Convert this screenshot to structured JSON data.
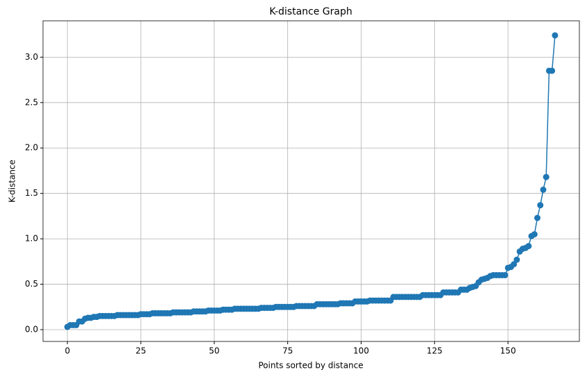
{
  "chart_data": {
    "type": "line",
    "title": "K-distance Graph",
    "x_label": "Points sorted by distance",
    "y_label": "K-distance",
    "x": [
      0,
      1,
      2,
      3,
      4,
      5,
      6,
      7,
      8,
      9,
      10,
      11,
      12,
      13,
      14,
      15,
      16,
      17,
      18,
      19,
      20,
      21,
      22,
      23,
      24,
      25,
      26,
      27,
      28,
      29,
      30,
      31,
      32,
      33,
      34,
      35,
      36,
      37,
      38,
      39,
      40,
      41,
      42,
      43,
      44,
      45,
      46,
      47,
      48,
      49,
      50,
      51,
      52,
      53,
      54,
      55,
      56,
      57,
      58,
      59,
      60,
      61,
      62,
      63,
      64,
      65,
      66,
      67,
      68,
      69,
      70,
      71,
      72,
      73,
      74,
      75,
      76,
      77,
      78,
      79,
      80,
      81,
      82,
      83,
      84,
      85,
      86,
      87,
      88,
      89,
      90,
      91,
      92,
      93,
      94,
      95,
      96,
      97,
      98,
      99,
      100,
      101,
      102,
      103,
      104,
      105,
      106,
      107,
      108,
      109,
      110,
      111,
      112,
      113,
      114,
      115,
      116,
      117,
      118,
      119,
      120,
      121,
      122,
      123,
      124,
      125,
      126,
      127,
      128,
      129,
      130,
      131,
      132,
      133,
      134,
      135,
      136,
      137,
      138,
      139,
      140,
      141,
      142,
      143,
      144,
      145,
      146,
      147,
      148,
      149,
      150,
      151,
      152,
      153,
      154,
      155,
      156,
      157,
      158,
      159,
      160,
      161,
      162,
      163,
      164,
      165,
      166
    ],
    "series": [
      {
        "color": "#1f77b4",
        "values": [
          0.03,
          0.05,
          0.05,
          0.05,
          0.09,
          0.09,
          0.12,
          0.13,
          0.13,
          0.14,
          0.14,
          0.15,
          0.15,
          0.15,
          0.15,
          0.15,
          0.15,
          0.16,
          0.16,
          0.16,
          0.16,
          0.16,
          0.16,
          0.16,
          0.16,
          0.17,
          0.17,
          0.17,
          0.17,
          0.18,
          0.18,
          0.18,
          0.18,
          0.18,
          0.18,
          0.18,
          0.19,
          0.19,
          0.19,
          0.19,
          0.19,
          0.19,
          0.19,
          0.2,
          0.2,
          0.2,
          0.2,
          0.2,
          0.21,
          0.21,
          0.21,
          0.21,
          0.21,
          0.22,
          0.22,
          0.22,
          0.22,
          0.23,
          0.23,
          0.23,
          0.23,
          0.23,
          0.23,
          0.23,
          0.23,
          0.23,
          0.24,
          0.24,
          0.24,
          0.24,
          0.24,
          0.25,
          0.25,
          0.25,
          0.25,
          0.25,
          0.25,
          0.25,
          0.26,
          0.26,
          0.26,
          0.26,
          0.26,
          0.26,
          0.26,
          0.28,
          0.28,
          0.28,
          0.28,
          0.28,
          0.28,
          0.28,
          0.28,
          0.29,
          0.29,
          0.29,
          0.29,
          0.29,
          0.31,
          0.31,
          0.31,
          0.31,
          0.31,
          0.32,
          0.32,
          0.32,
          0.32,
          0.32,
          0.32,
          0.32,
          0.32,
          0.36,
          0.36,
          0.36,
          0.36,
          0.36,
          0.36,
          0.36,
          0.36,
          0.36,
          0.36,
          0.38,
          0.38,
          0.38,
          0.38,
          0.38,
          0.38,
          0.38,
          0.41,
          0.41,
          0.41,
          0.41,
          0.41,
          0.41,
          0.44,
          0.44,
          0.44,
          0.46,
          0.47,
          0.48,
          0.52,
          0.55,
          0.56,
          0.57,
          0.59,
          0.6,
          0.6,
          0.6,
          0.6,
          0.6,
          0.68,
          0.69,
          0.72,
          0.77,
          0.86,
          0.89,
          0.9,
          0.92,
          1.03,
          1.05,
          1.23,
          1.37,
          1.54,
          1.68,
          2.85,
          2.85,
          3.24
        ]
      }
    ],
    "xlim": [
      -8.3,
      174.3
    ],
    "xticks": [
      0,
      25,
      50,
      75,
      100,
      125,
      150
    ],
    "ylim": [
      -0.13,
      3.4
    ],
    "yticks": [
      {
        "value": 0,
        "label": "0.0"
      },
      0.5,
      {
        "value": 1,
        "label": "1.0"
      },
      1.5,
      {
        "value": 2,
        "label": "2.0"
      },
      2.5,
      {
        "value": 3,
        "label": "3.0"
      }
    ],
    "grid": true,
    "marker": "o"
  }
}
